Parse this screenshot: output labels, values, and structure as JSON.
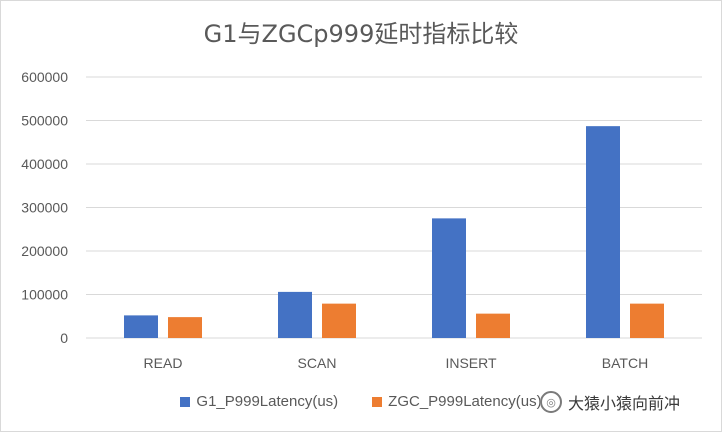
{
  "chart_data": {
    "type": "bar",
    "title": "G1与ZGCp999延时指标比较",
    "categories": [
      "READ",
      "SCAN",
      "INSERT",
      "BATCH"
    ],
    "series": [
      {
        "name": "G1_P999Latency(us)",
        "color": "#4472c4",
        "values": [
          52000,
          106000,
          275000,
          487000
        ]
      },
      {
        "name": "ZGC_P999Latency(us)",
        "color": "#ed7d31",
        "values": [
          48000,
          79000,
          56000,
          79000
        ]
      }
    ],
    "ylim": [
      0,
      600000
    ],
    "yticks": [
      "0",
      "100000",
      "200000",
      "300000",
      "400000",
      "500000",
      "600000"
    ],
    "grid": true,
    "legend_position": "bottom"
  },
  "watermark": {
    "icon": "wechat-icon",
    "text": "大猿小猿向前冲"
  }
}
